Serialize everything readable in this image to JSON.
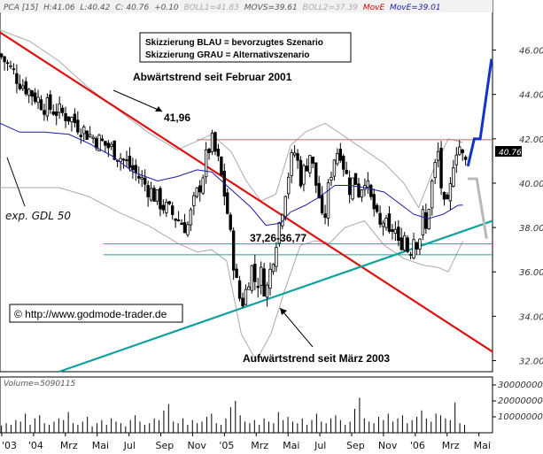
{
  "header": {
    "symbol": "PCA [15]",
    "high": "H:41.06",
    "low": "L:40.42",
    "close": "C: 40.76",
    "change": "+0.10",
    "boll1": "BOLL1=41.83",
    "movs": "MOVS=39.61",
    "boll2": "BOLL2=37.39",
    "move_red": "MovE",
    "move_blue": "MovE=39.01"
  },
  "legend": {
    "line1": "Skizzierung BLAU = bevorzugtes Szenario",
    "line2": "Skizzierung GRAU = Alternativszenario"
  },
  "annotations": {
    "downtrend": "Abwärtstrend seit Februar 2001",
    "uptrend": "Aufwärtstrend seit März 2003",
    "high_level": "41,96",
    "support_zone": "37,26-36,77",
    "ema": "exp. GDL 50",
    "copyright": "© http://www.godmode-trader.de"
  },
  "last_price_label": "40.76",
  "colors": {
    "downtrend": "#dd1111",
    "uptrend": "#11a0a0",
    "ma_blue": "#1a1aa6",
    "scenario_blue": "#1133cc",
    "scenario_gray": "#b8b8b8",
    "resistance": "#cc6666",
    "support": "#20a0a0",
    "candles": "#000000",
    "volume": "#000000"
  },
  "chart_data": {
    "type": "candlestick",
    "x_labels": [
      "'03",
      "'04",
      "Mrz",
      "Mai",
      "Jul",
      "Sep",
      "Nov",
      "'05",
      "Mrz",
      "Mai",
      "Jul",
      "Sep",
      "Nov",
      "'06",
      "Mrz",
      "Mai"
    ],
    "y_ticks": [
      32.0,
      34.0,
      36.0,
      38.0,
      40.0,
      42.0,
      44.0,
      46.0
    ],
    "ylim": [
      31.5,
      47.7
    ],
    "resistance": 41.96,
    "support_zone": [
      37.26,
      36.77
    ],
    "last_close": 40.76,
    "price_path": [
      [
        0,
        45.8
      ],
      [
        4,
        44.6
      ],
      [
        9,
        43.5
      ],
      [
        14,
        43.0
      ],
      [
        18,
        42.2
      ],
      [
        23,
        41.5
      ],
      [
        27,
        40.6
      ],
      [
        30,
        39.8
      ],
      [
        33,
        39.0
      ],
      [
        36,
        38.4
      ],
      [
        38,
        38.0
      ],
      [
        39.5,
        39.2
      ],
      [
        41,
        40.2
      ],
      [
        42,
        41.3
      ],
      [
        43,
        41.9
      ],
      [
        44.5,
        40.8
      ],
      [
        46,
        39.0
      ],
      [
        47,
        37.2
      ],
      [
        48,
        35.5
      ],
      [
        49,
        34.5
      ],
      [
        50,
        35.2
      ],
      [
        51,
        36.3
      ],
      [
        52,
        35.4
      ],
      [
        53,
        35.9
      ],
      [
        54,
        35.0
      ],
      [
        55,
        36.2
      ],
      [
        56,
        37.4
      ],
      [
        57,
        38.5
      ],
      [
        58,
        39.8
      ],
      [
        59,
        40.9
      ],
      [
        60,
        41.5
      ],
      [
        61,
        40.2
      ],
      [
        62,
        40.7
      ],
      [
        63,
        41.4
      ],
      [
        64,
        40.1
      ],
      [
        65,
        39.2
      ],
      [
        65.5,
        38.0
      ],
      [
        66,
        38.6
      ],
      [
        67,
        40.3
      ],
      [
        68,
        41.3
      ],
      [
        69,
        41.6
      ],
      [
        70,
        40.6
      ],
      [
        71,
        39.8
      ],
      [
        72,
        40.3
      ],
      [
        73,
        39.5
      ],
      [
        74,
        40.4
      ],
      [
        75,
        39.4
      ],
      [
        76,
        38.8
      ],
      [
        77,
        37.9
      ],
      [
        78,
        38.4
      ],
      [
        79,
        37.5
      ],
      [
        80,
        38.2
      ],
      [
        81,
        37.0
      ],
      [
        82,
        37.8
      ],
      [
        83,
        36.8
      ],
      [
        84,
        37.6
      ],
      [
        85,
        37.3
      ],
      [
        86,
        38.7
      ],
      [
        86.5,
        37.8
      ],
      [
        87,
        38.9
      ],
      [
        88,
        40.4
      ],
      [
        89,
        41.4
      ],
      [
        89.8,
        39.3
      ],
      [
        90.5,
        38.5
      ],
      [
        91.3,
        39.4
      ],
      [
        92,
        41.0
      ],
      [
        93,
        41.9
      ],
      [
        94,
        41.1
      ],
      [
        95,
        40.76
      ]
    ],
    "ma_blue": [
      [
        0,
        42.7
      ],
      [
        4,
        42.3
      ],
      [
        9,
        42.3
      ],
      [
        14,
        42.2
      ],
      [
        18,
        41.8
      ],
      [
        23,
        41.2
      ],
      [
        27,
        40.5
      ],
      [
        32,
        40.1
      ],
      [
        36,
        40.3
      ],
      [
        40,
        40.6
      ],
      [
        43,
        40.5
      ],
      [
        45,
        40.1
      ],
      [
        47,
        39.7
      ],
      [
        51,
        38.9
      ],
      [
        54,
        38.1
      ],
      [
        57,
        38.2
      ],
      [
        59,
        38.7
      ],
      [
        62,
        39.0
      ],
      [
        65,
        39.4
      ],
      [
        68,
        39.9
      ],
      [
        71,
        39.9
      ],
      [
        74,
        39.8
      ],
      [
        78,
        39.6
      ],
      [
        81,
        39.1
      ],
      [
        84,
        38.6
      ],
      [
        87,
        38.4
      ],
      [
        90,
        38.6
      ],
      [
        93,
        39.0
      ],
      [
        94,
        39.01
      ]
    ],
    "boll_upper": [
      [
        0,
        46.9
      ],
      [
        6,
        46.4
      ],
      [
        12,
        45.5
      ],
      [
        18,
        44.3
      ],
      [
        24,
        43.3
      ],
      [
        30,
        42.3
      ],
      [
        36,
        41.5
      ],
      [
        40,
        41.9
      ],
      [
        43,
        42.2
      ],
      [
        45,
        41.8
      ],
      [
        47,
        41.4
      ],
      [
        50,
        40.1
      ],
      [
        53,
        39.2
      ],
      [
        56,
        39.5
      ],
      [
        59,
        41.7
      ],
      [
        62,
        42.3
      ],
      [
        66,
        42.7
      ],
      [
        70,
        42.1
      ],
      [
        74,
        41.5
      ],
      [
        78,
        40.9
      ],
      [
        82,
        40.0
      ],
      [
        85,
        38.9
      ],
      [
        88,
        40.6
      ],
      [
        91,
        42.0
      ],
      [
        94,
        41.83
      ]
    ],
    "boll_lower": [
      [
        0,
        39.8
      ],
      [
        6,
        39.8
      ],
      [
        12,
        39.8
      ],
      [
        18,
        39.4
      ],
      [
        24,
        38.7
      ],
      [
        30,
        38.1
      ],
      [
        36,
        37.3
      ],
      [
        40,
        36.9
      ],
      [
        43,
        37.0
      ],
      [
        46,
        36.5
      ],
      [
        49,
        33.2
      ],
      [
        52,
        32.0
      ],
      [
        55,
        33.2
      ],
      [
        58,
        35.3
      ],
      [
        61,
        37.2
      ],
      [
        64,
        37.4
      ],
      [
        67,
        37.3
      ],
      [
        70,
        38.0
      ],
      [
        74,
        38.3
      ],
      [
        78,
        37.2
      ],
      [
        82,
        36.6
      ],
      [
        86,
        36.3
      ],
      [
        89,
        36.2
      ],
      [
        91,
        36.0
      ],
      [
        94,
        37.39
      ]
    ],
    "scenario_blue": [
      [
        95,
        40.76
      ],
      [
        96.3,
        42.0
      ],
      [
        97.5,
        42.0
      ],
      [
        99.8,
        45.6
      ]
    ],
    "scenario_gray": [
      [
        95,
        40.2
      ],
      [
        96.8,
        40.2
      ],
      [
        98.8,
        37.5
      ]
    ],
    "downtrend_line": [
      [
        0,
        46.8
      ],
      [
        100,
        32.4
      ]
    ],
    "uptrend_line": [
      [
        12,
        31.5
      ],
      [
        100,
        38.3
      ]
    ],
    "volume_axis_ticks": [
      10000000,
      20000000,
      30000000
    ],
    "volume_ylim": [
      0,
      35000000
    ],
    "volume_label": "Volume=5090115",
    "volume": [
      4.5,
      6,
      5,
      8,
      7,
      12,
      5,
      9,
      11,
      6,
      5,
      7,
      9,
      8,
      13,
      6,
      5,
      7,
      10,
      4,
      6,
      8,
      5,
      9,
      7,
      6,
      4,
      8,
      11,
      7,
      5,
      6,
      9,
      8,
      14,
      18,
      7,
      6,
      9,
      5,
      8,
      6,
      7,
      10,
      12,
      6,
      5,
      9,
      16,
      20,
      11,
      7,
      6,
      8,
      5,
      9,
      7,
      6,
      13,
      8,
      10,
      7,
      6,
      9,
      5,
      8,
      12,
      7,
      6,
      9,
      11,
      8,
      5,
      7,
      15,
      22,
      9,
      7,
      6,
      10,
      8,
      12,
      7,
      9,
      11,
      6,
      8,
      10,
      14,
      9,
      7,
      12,
      11,
      9,
      8,
      19,
      6,
      5
    ]
  }
}
